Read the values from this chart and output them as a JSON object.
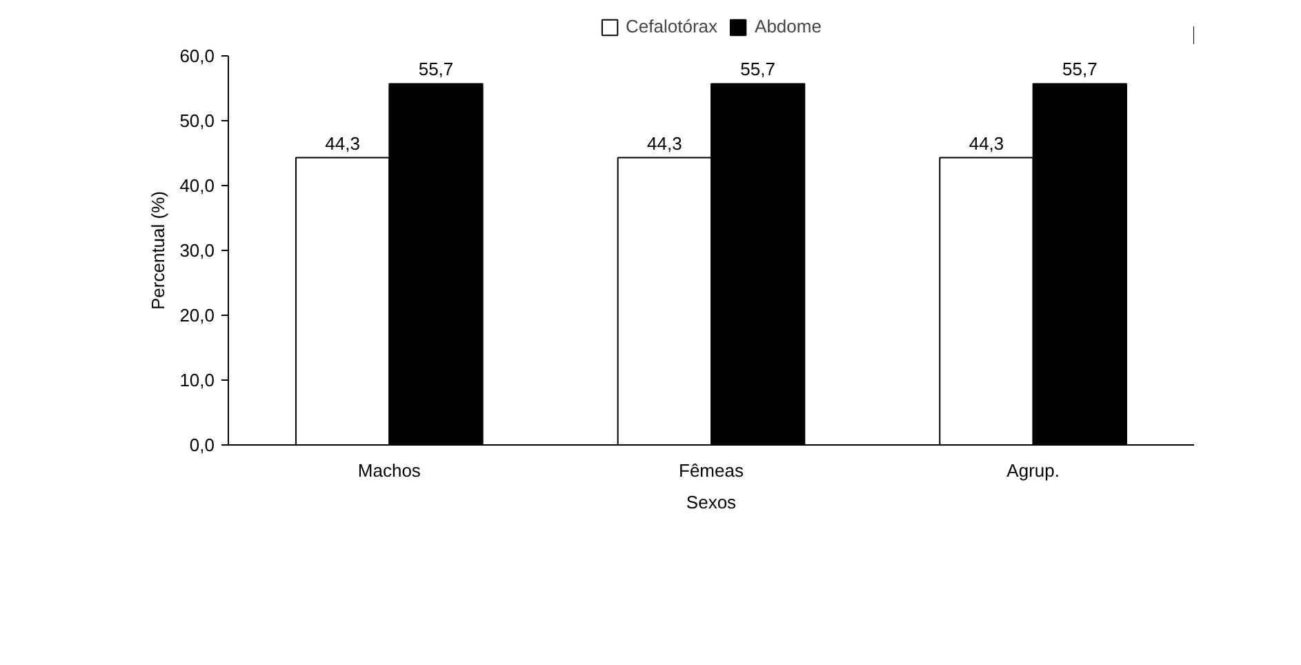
{
  "chart_data": {
    "type": "bar",
    "xlabel": "Sexos",
    "ylabel": "Percentual (%)",
    "categories": [
      "Machos",
      "Fêmeas",
      "Agrup."
    ],
    "series": [
      {
        "name": "Cefalotórax",
        "color": "#ffffff",
        "values": [
          44.3,
          44.3,
          44.3
        ],
        "value_labels": [
          "44,3",
          "44,3",
          "44,3"
        ]
      },
      {
        "name": "Abdome",
        "color": "#000000",
        "values": [
          55.7,
          55.7,
          55.7
        ],
        "value_labels": [
          "55,7",
          "55,7",
          "55,7"
        ]
      }
    ],
    "ylim": [
      0,
      60
    ],
    "yticks": [
      {
        "value": 0,
        "label": "0,0"
      },
      {
        "value": 10,
        "label": "10,0"
      },
      {
        "value": 20,
        "label": "20,0"
      },
      {
        "value": 30,
        "label": "30,0"
      },
      {
        "value": 40,
        "label": "40,0"
      },
      {
        "value": 50,
        "label": "50,0"
      },
      {
        "value": 60,
        "label": "60,0"
      }
    ],
    "grid": false,
    "legend": "top"
  }
}
